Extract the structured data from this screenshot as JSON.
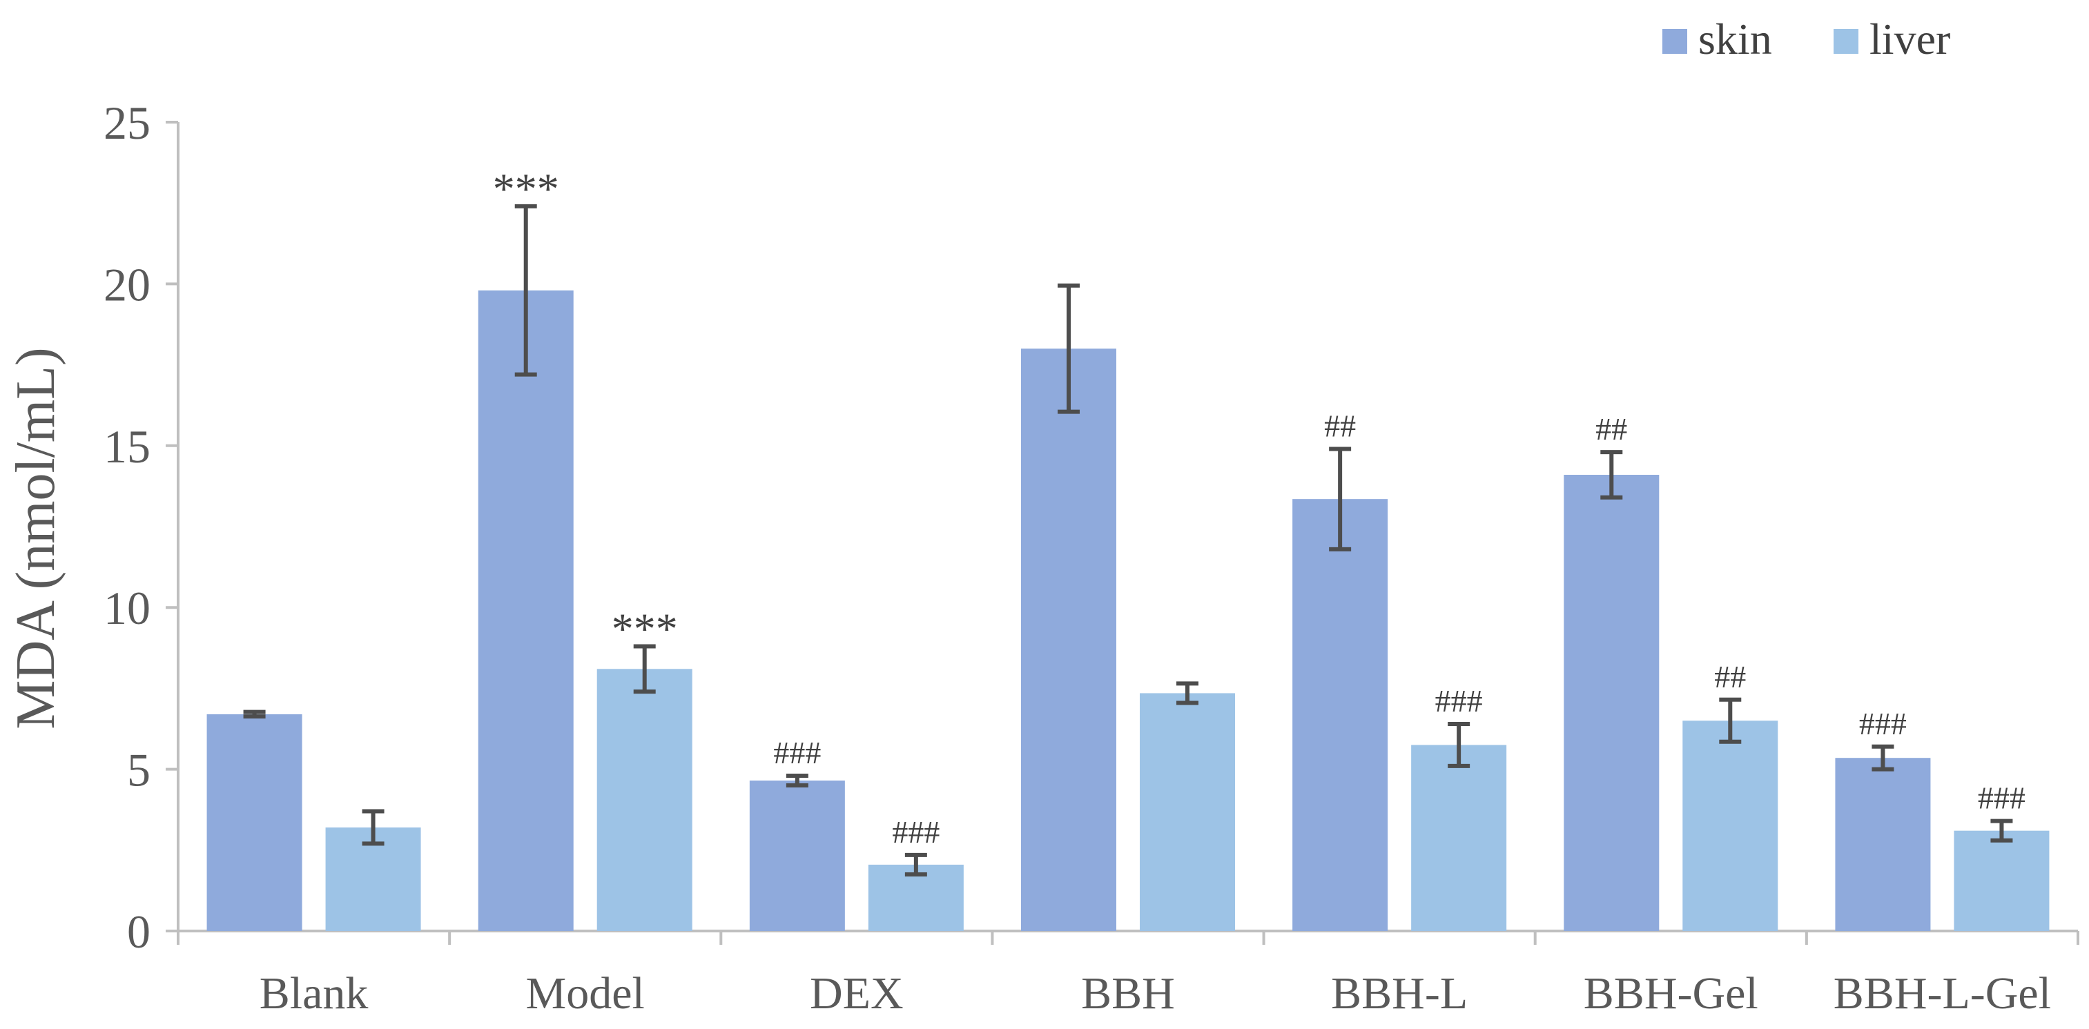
{
  "chart_data": {
    "type": "bar",
    "title": "",
    "xlabel": "",
    "ylabel": "MDA (nmol/mL)",
    "ylim": [
      0,
      25
    ],
    "yticks": [
      0,
      5,
      10,
      15,
      20,
      25
    ],
    "ytick_labels": [
      "0",
      "5",
      "10",
      "15",
      "20",
      "25"
    ],
    "grid": false,
    "legend_position": "top-right",
    "categories": [
      "Blank",
      "Model",
      "DEX",
      "BBH",
      "BBH-L",
      "BBH-Gel",
      "BBH-L-Gel"
    ],
    "series": [
      {
        "name": "skin",
        "color": "#8faadc",
        "values": [
          6.7,
          19.8,
          4.65,
          18.0,
          13.35,
          14.1,
          5.35
        ],
        "errors": [
          0.07,
          2.6,
          0.15,
          1.95,
          1.55,
          0.7,
          0.35
        ],
        "annotations": [
          "",
          "***",
          "###",
          "",
          "##",
          "##",
          "###"
        ]
      },
      {
        "name": "liver",
        "color": "#9dc3e6",
        "values": [
          3.2,
          8.1,
          2.05,
          7.35,
          5.75,
          6.5,
          3.1
        ],
        "errors": [
          0.5,
          0.7,
          0.3,
          0.3,
          0.65,
          0.65,
          0.3
        ],
        "annotations": [
          "",
          "***",
          "###",
          "",
          "###",
          "##",
          "###"
        ]
      }
    ]
  }
}
